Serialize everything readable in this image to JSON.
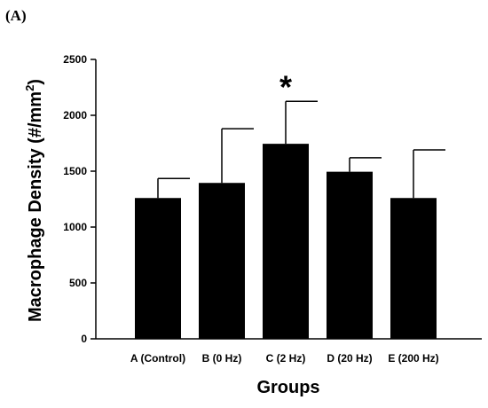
{
  "panel_label": "(A)",
  "chart_data": {
    "type": "bar",
    "categories": [
      "A (Control)",
      "B (0 Hz)",
      "C (2 Hz)",
      "D (20 Hz)",
      "E (200 Hz)"
    ],
    "values": [
      1260,
      1395,
      1745,
      1495,
      1260
    ],
    "error_upper": [
      1435,
      1880,
      2125,
      1620,
      1690
    ],
    "xlabel": "Groups",
    "ylabel": "Macrophage Density (#/mm",
    "ylabel_superscript": "2",
    "ylabel_suffix": ")",
    "ylim": [
      0,
      2500
    ],
    "yticks": [
      0,
      500,
      1000,
      1500,
      2000,
      2500
    ],
    "annotations": [
      {
        "category": "C (2 Hz)",
        "text": "*"
      }
    ],
    "bar_color": "#000000",
    "grid": false,
    "legend": "none"
  }
}
